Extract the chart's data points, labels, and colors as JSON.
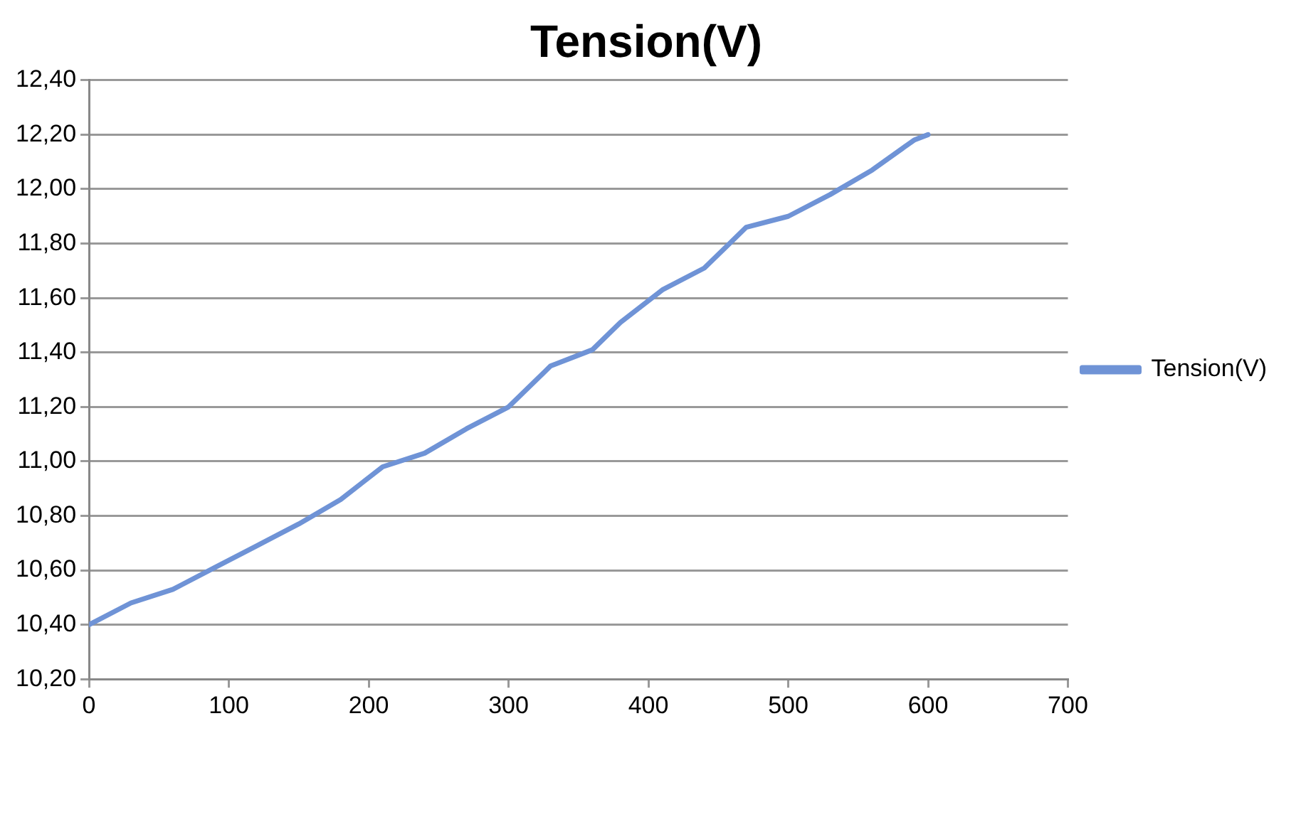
{
  "chart_data": {
    "type": "line",
    "title": "Tension(V)",
    "x": [
      0,
      30,
      60,
      90,
      120,
      150,
      180,
      210,
      240,
      270,
      300,
      330,
      360,
      380,
      410,
      440,
      470,
      500,
      530,
      560,
      590,
      600
    ],
    "series": [
      {
        "name": "Tension(V)",
        "color": "#6f93d6",
        "values": [
          10.4,
          10.48,
          10.53,
          10.61,
          10.69,
          10.77,
          10.86,
          10.98,
          11.03,
          11.12,
          11.2,
          11.35,
          11.41,
          11.51,
          11.63,
          11.71,
          11.86,
          11.9,
          11.98,
          12.07,
          12.18,
          12.2
        ]
      }
    ],
    "xlim": [
      0,
      700
    ],
    "xticks": [
      0,
      100,
      200,
      300,
      400,
      500,
      600,
      700
    ],
    "ylim": [
      10.2,
      12.4
    ],
    "yticks": [
      {
        "value": 10.2,
        "label": "10,20"
      },
      {
        "value": 10.4,
        "label": "10,40"
      },
      {
        "value": 10.6,
        "label": "10,60"
      },
      {
        "value": 10.8,
        "label": "10,80"
      },
      {
        "value": 11,
        "label": "11,00"
      },
      {
        "value": 11.2,
        "label": "11,20"
      },
      {
        "value": 11.4,
        "label": "11,40"
      },
      {
        "value": 11.6,
        "label": "11,60"
      },
      {
        "value": 11.8,
        "label": "11,80"
      },
      {
        "value": 12,
        "label": "12,00"
      },
      {
        "value": 12.2,
        "label": "12,20"
      },
      {
        "value": 12.4,
        "label": "12,40"
      }
    ],
    "grid": "y",
    "legend": "right",
    "marker": "none",
    "line_style": "solid"
  }
}
